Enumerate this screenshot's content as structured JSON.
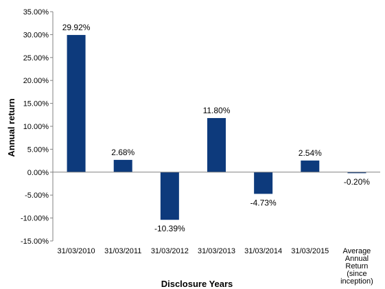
{
  "chart_data": {
    "type": "bar",
    "categories": [
      "31/03/2010",
      "31/03/2011",
      "31/03/2012",
      "31/03/2013",
      "31/03/2014",
      "31/03/2015",
      "Average Annual Return (since inception)"
    ],
    "category_lines": [
      [
        "31/03/2010"
      ],
      [
        "31/03/2011"
      ],
      [
        "31/03/2012"
      ],
      [
        "31/03/2013"
      ],
      [
        "31/03/2014"
      ],
      [
        "31/03/2015"
      ],
      [
        "Average",
        "Annual",
        "Return",
        "(since",
        "inception)"
      ]
    ],
    "values": [
      29.92,
      2.68,
      -10.39,
      11.8,
      -4.73,
      2.54,
      -0.2
    ],
    "data_labels": [
      "29.92%",
      "2.68%",
      "-10.39%",
      "11.80%",
      "-4.73%",
      "2.54%",
      "-0.20%"
    ],
    "y_ticks": [
      "35.00%",
      "30.00%",
      "25.00%",
      "20.00%",
      "15.00%",
      "10.00%",
      "5.00%",
      "0.00%",
      "-5.00%",
      "-10.00%",
      "-15.00%"
    ],
    "ylim": [
      -15,
      35
    ],
    "xlabel": "Disclosure Years",
    "ylabel": "Annual return",
    "bar_color": "#0D3A7C",
    "grid": false,
    "legend": "none"
  }
}
